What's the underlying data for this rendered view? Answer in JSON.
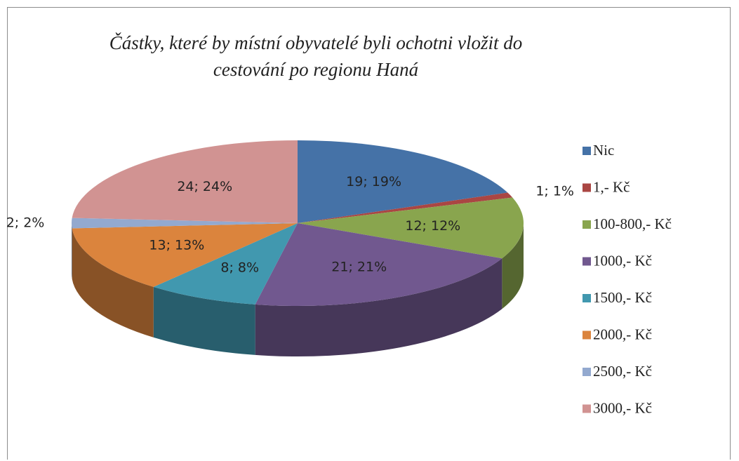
{
  "chart_data": {
    "type": "pie",
    "title": "Částky, které by místní obyvatelé byli ochotni vložit do cestování po regionu Haná",
    "categories": [
      "Nic",
      "1,- Kč",
      "100-800,- Kč",
      "1000,- Kč",
      "1500,- Kč",
      "2000,- Kč",
      "2500,- Kč",
      "3000,- Kč"
    ],
    "values": [
      19,
      1,
      12,
      21,
      8,
      13,
      2,
      24
    ],
    "value_labels": [
      "19; 19%",
      "1; 1%",
      "12; 12%",
      "21; 21%",
      "8; 8%",
      "13; 13%",
      "2; 2%",
      "24; 24%"
    ],
    "colors": [
      "#4572a7",
      "#aa4643",
      "#89a54e",
      "#71588f",
      "#4198af",
      "#db843d",
      "#93a9cf",
      "#d19392"
    ],
    "legend": "right"
  }
}
